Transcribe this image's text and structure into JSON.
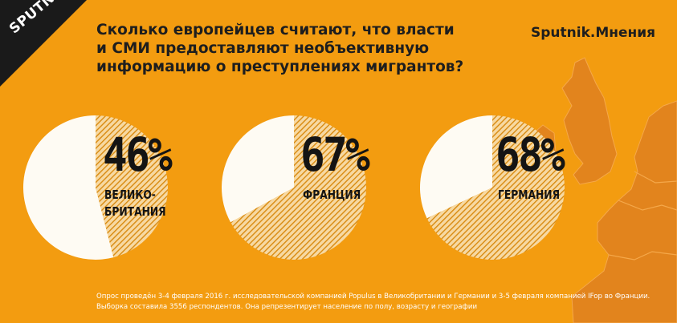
{
  "brand": {
    "logo_text": "SPUTNIK",
    "source_label": "Sputnik.Мнения",
    "ribbon_color": "#1a1a1a"
  },
  "title_lines": [
    "Сколько европейцев считают, что власти",
    "и СМИ предоставляют необъективную",
    "информацию о преступлениях мигрантов?"
  ],
  "colors": {
    "background": "#f39c10",
    "pie_share": "#f7d9a2",
    "pie_hatch": "#d88a10",
    "pie_rest": "#fefbf3",
    "map": "#e2841d",
    "map_border": "#f5a84a"
  },
  "chart_data": {
    "type": "pie",
    "unit": "%",
    "charts": [
      {
        "value": 46,
        "label": "46%",
        "country": "ВЕЛИКО-\nБРИТАНИЯ"
      },
      {
        "value": 67,
        "label": "67%",
        "country": "ФРАНЦИЯ"
      },
      {
        "value": 68,
        "label": "68%",
        "country": "ГЕРМАНИЯ"
      }
    ]
  },
  "footnote": {
    "line1": "Опрос проведён 3-4 февраля 2016 г. исследовательской компанией Populus в Великобритании и Германии и 3-5 февраля компанией IFop во Франции.",
    "line2": "Выборка составила 3556 респондентов. Она репрезентирует население по полу, возрасту и географии"
  }
}
